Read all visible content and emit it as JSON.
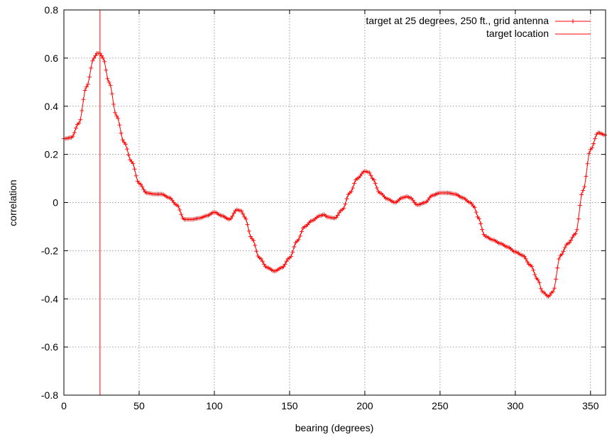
{
  "chart_data": {
    "type": "line",
    "title": "",
    "xlabel": "bearing (degrees)",
    "ylabel": "correlation",
    "xlim": [
      0,
      360
    ],
    "ylim": [
      -0.8,
      0.8
    ],
    "xticks": [
      0,
      50,
      100,
      150,
      200,
      250,
      300,
      350
    ],
    "yticks": [
      -0.8,
      -0.6,
      -0.4,
      -0.2,
      0,
      0.2,
      0.4,
      0.6,
      0.8
    ],
    "grid": true,
    "legend_position": "top-right",
    "series": [
      {
        "name": "target at 25 degrees, 250 ft., grid antenna",
        "color": "#ff0000",
        "marker": "plus",
        "x": [
          0,
          5,
          10,
          15,
          20,
          22,
          24,
          26,
          30,
          35,
          40,
          45,
          50,
          55,
          60,
          65,
          70,
          75,
          80,
          85,
          90,
          95,
          100,
          105,
          110,
          115,
          118,
          120,
          125,
          130,
          135,
          140,
          145,
          150,
          155,
          160,
          165,
          170,
          173,
          175,
          180,
          185,
          190,
          195,
          200,
          203,
          205,
          210,
          215,
          220,
          225,
          228,
          230,
          235,
          240,
          245,
          250,
          255,
          260,
          265,
          270,
          273,
          275,
          280,
          285,
          290,
          295,
          300,
          305,
          310,
          315,
          318,
          322,
          325,
          330,
          335,
          340,
          345,
          350,
          355,
          360
        ],
        "y": [
          0.265,
          0.27,
          0.33,
          0.48,
          0.6,
          0.62,
          0.62,
          0.6,
          0.5,
          0.36,
          0.25,
          0.17,
          0.08,
          0.04,
          0.035,
          0.035,
          0.02,
          -0.01,
          -0.07,
          -0.07,
          -0.065,
          -0.055,
          -0.04,
          -0.055,
          -0.07,
          -0.03,
          -0.035,
          -0.06,
          -0.15,
          -0.23,
          -0.27,
          -0.285,
          -0.27,
          -0.23,
          -0.16,
          -0.1,
          -0.075,
          -0.055,
          -0.05,
          -0.06,
          -0.065,
          -0.03,
          0.04,
          0.1,
          0.13,
          0.125,
          0.1,
          0.04,
          0.015,
          0.0,
          0.02,
          0.025,
          0.02,
          -0.01,
          0.0,
          0.03,
          0.04,
          0.04,
          0.035,
          0.02,
          0.0,
          -0.02,
          -0.06,
          -0.14,
          -0.155,
          -0.17,
          -0.185,
          -0.205,
          -0.22,
          -0.26,
          -0.32,
          -0.37,
          -0.39,
          -0.37,
          -0.22,
          -0.17,
          -0.13,
          0.05,
          0.22,
          0.29,
          0.28
        ]
      },
      {
        "name": "target location",
        "color": "#ff0000",
        "marker": "none",
        "vline_x": 24
      }
    ]
  }
}
